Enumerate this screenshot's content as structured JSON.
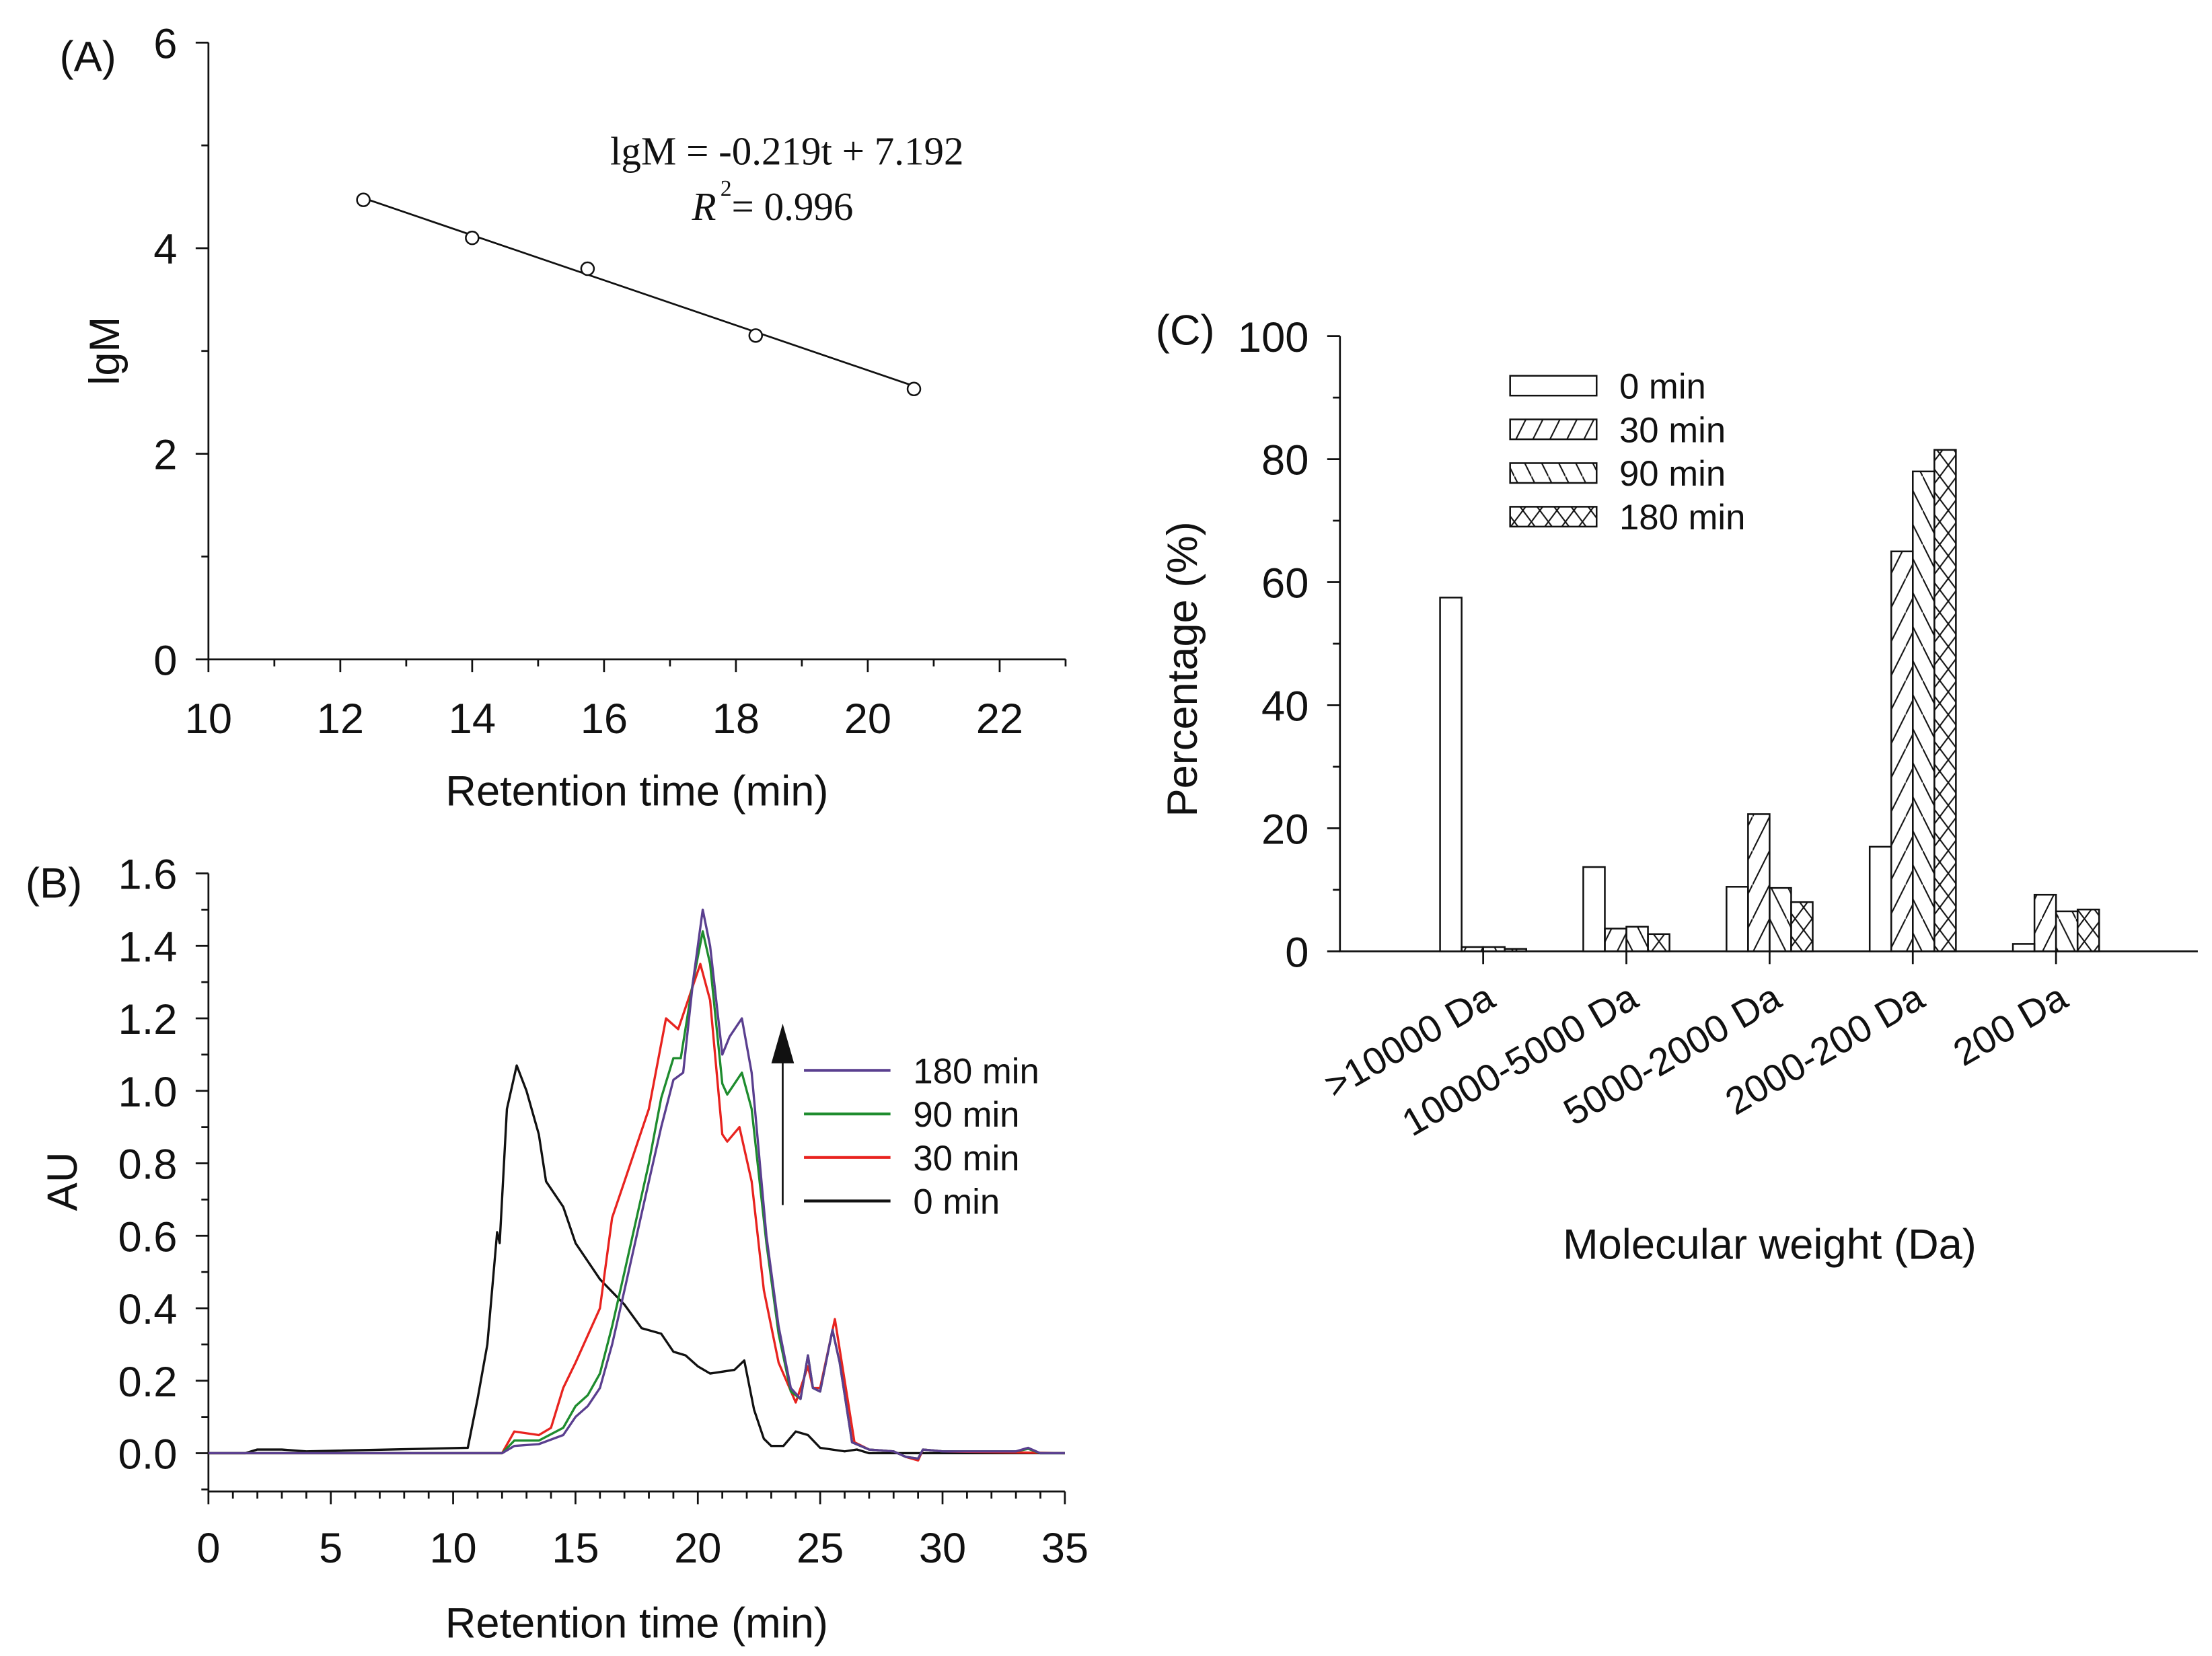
{
  "chart_data": [
    {
      "panel": "(A)",
      "type": "scatter",
      "xlabel": "Retention time (min)",
      "ylabel": "lgM",
      "xlim": [
        10,
        23
      ],
      "ylim": [
        0,
        6
      ],
      "xticks": [
        10,
        12,
        14,
        16,
        18,
        20,
        22
      ],
      "yticks": [
        0,
        2,
        4,
        6
      ],
      "points": [
        {
          "x": 12.35,
          "y": 4.47
        },
        {
          "x": 14.0,
          "y": 4.1
        },
        {
          "x": 15.75,
          "y": 3.8
        },
        {
          "x": 18.3,
          "y": 3.15
        },
        {
          "x": 20.7,
          "y": 2.63
        }
      ],
      "fit": {
        "slope": -0.219,
        "intercept": 7.192,
        "x_range": [
          12.35,
          20.7
        ]
      },
      "annotation_equation": "lgM = -0.219t + 7.192",
      "annotation_r2_label": "R",
      "annotation_r2_sup": "2",
      "annotation_r2_value": " = 0.996",
      "grid": false
    },
    {
      "panel": "(B)",
      "type": "line",
      "xlabel": "Retention time (min)",
      "ylabel": "AU",
      "xlim": [
        0,
        35
      ],
      "ylim": [
        -0.1,
        1.6
      ],
      "xticks": [
        0,
        5,
        10,
        15,
        20,
        25,
        30,
        35
      ],
      "yticks": [
        "0.0",
        "0.2",
        "0.4",
        "0.6",
        "0.8",
        "1.0",
        "1.2",
        "1.4",
        "1.6"
      ],
      "legend_position": "right",
      "arrow_annotation": "increasing time",
      "series": [
        {
          "name": "180 min",
          "color": "#5a3f8f",
          "points": [
            [
              0,
              0
            ],
            [
              12,
              0
            ],
            [
              12.5,
              0.02
            ],
            [
              13.5,
              0.025
            ],
            [
              14.5,
              0.05
            ],
            [
              15,
              0.1
            ],
            [
              15.5,
              0.13
            ],
            [
              16,
              0.18
            ],
            [
              16.5,
              0.3
            ],
            [
              17,
              0.45
            ],
            [
              17.5,
              0.6
            ],
            [
              18,
              0.75
            ],
            [
              18.5,
              0.9
            ],
            [
              19,
              1.03
            ],
            [
              19.4,
              1.05
            ],
            [
              19.8,
              1.3
            ],
            [
              20.2,
              1.5
            ],
            [
              20.5,
              1.4
            ],
            [
              21,
              1.1
            ],
            [
              21.3,
              1.15
            ],
            [
              21.8,
              1.2
            ],
            [
              22.2,
              1.05
            ],
            [
              22.8,
              0.6
            ],
            [
              23.3,
              0.35
            ],
            [
              23.8,
              0.18
            ],
            [
              24.2,
              0.15
            ],
            [
              24.5,
              0.27
            ],
            [
              24.7,
              0.18
            ],
            [
              25,
              0.17
            ],
            [
              25.5,
              0.34
            ],
            [
              25.8,
              0.25
            ],
            [
              26.3,
              0.03
            ],
            [
              27,
              0.01
            ],
            [
              28,
              0.005
            ],
            [
              28.5,
              -0.01
            ],
            [
              29,
              -0.015
            ],
            [
              29.2,
              0.01
            ],
            [
              30,
              0.005
            ],
            [
              33,
              0.005
            ],
            [
              33.5,
              0.015
            ],
            [
              34,
              0
            ],
            [
              35,
              0
            ]
          ]
        },
        {
          "name": "90 min",
          "color": "#1e8c2e",
          "points": [
            [
              0,
              0
            ],
            [
              12,
              0
            ],
            [
              12.5,
              0.035
            ],
            [
              13.5,
              0.035
            ],
            [
              14.5,
              0.07
            ],
            [
              15,
              0.13
            ],
            [
              15.5,
              0.16
            ],
            [
              16,
              0.22
            ],
            [
              16.5,
              0.35
            ],
            [
              17,
              0.5
            ],
            [
              17.5,
              0.65
            ],
            [
              18,
              0.8
            ],
            [
              18.5,
              0.98
            ],
            [
              19,
              1.09
            ],
            [
              19.3,
              1.09
            ],
            [
              19.8,
              1.3
            ],
            [
              20.2,
              1.44
            ],
            [
              20.5,
              1.35
            ],
            [
              21,
              1.02
            ],
            [
              21.2,
              0.99
            ],
            [
              21.8,
              1.05
            ],
            [
              22.2,
              0.95
            ],
            [
              22.8,
              0.58
            ],
            [
              23.3,
              0.33
            ],
            [
              23.8,
              0.17
            ],
            [
              24.2,
              0.15
            ],
            [
              24.5,
              0.27
            ],
            [
              24.7,
              0.18
            ],
            [
              25,
              0.17
            ],
            [
              25.5,
              0.34
            ],
            [
              25.8,
              0.25
            ],
            [
              26.3,
              0.03
            ],
            [
              27,
              0.01
            ],
            [
              28,
              0.005
            ],
            [
              28.5,
              -0.01
            ],
            [
              29,
              -0.015
            ],
            [
              29.2,
              0.01
            ],
            [
              30,
              0.005
            ],
            [
              33,
              0.005
            ],
            [
              33.5,
              0.012
            ],
            [
              34,
              0
            ],
            [
              35,
              0
            ]
          ]
        },
        {
          "name": "30 min",
          "color": "#e8231f",
          "points": [
            [
              0,
              0
            ],
            [
              12,
              0
            ],
            [
              12.5,
              0.06
            ],
            [
              13.5,
              0.05
            ],
            [
              14,
              0.07
            ],
            [
              14.5,
              0.18
            ],
            [
              15,
              0.25
            ],
            [
              16,
              0.4
            ],
            [
              16.5,
              0.65
            ],
            [
              17,
              0.75
            ],
            [
              18,
              0.95
            ],
            [
              18.7,
              1.2
            ],
            [
              19.2,
              1.17
            ],
            [
              20.1,
              1.35
            ],
            [
              20.5,
              1.25
            ],
            [
              21,
              0.88
            ],
            [
              21.2,
              0.86
            ],
            [
              21.7,
              0.9
            ],
            [
              22.2,
              0.75
            ],
            [
              22.7,
              0.45
            ],
            [
              23.3,
              0.25
            ],
            [
              24,
              0.14
            ],
            [
              24.5,
              0.24
            ],
            [
              24.7,
              0.18
            ],
            [
              25,
              0.18
            ],
            [
              25.6,
              0.37
            ],
            [
              26,
              0.2
            ],
            [
              26.4,
              0.03
            ],
            [
              27,
              0.01
            ],
            [
              28,
              0.005
            ],
            [
              28.5,
              -0.01
            ],
            [
              29,
              -0.02
            ],
            [
              29.2,
              0.01
            ],
            [
              30,
              0.005
            ],
            [
              35,
              0
            ]
          ]
        },
        {
          "name": "0 min",
          "color": "#111111",
          "points": [
            [
              0,
              0
            ],
            [
              1.5,
              0
            ],
            [
              2,
              0.01
            ],
            [
              3,
              0.01
            ],
            [
              4,
              0.005
            ],
            [
              10.6,
              0.015
            ],
            [
              11,
              0.15
            ],
            [
              11.4,
              0.3
            ],
            [
              11.8,
              0.61
            ],
            [
              11.9,
              0.58
            ],
            [
              12.2,
              0.95
            ],
            [
              12.6,
              1.07
            ],
            [
              13,
              1.0
            ],
            [
              13.5,
              0.88
            ],
            [
              13.8,
              0.75
            ],
            [
              14.5,
              0.68
            ],
            [
              15,
              0.58
            ],
            [
              16,
              0.48
            ],
            [
              17,
              0.41
            ],
            [
              17.7,
              0.345
            ],
            [
              18.5,
              0.33
            ],
            [
              19,
              0.28
            ],
            [
              19.5,
              0.27
            ],
            [
              20,
              0.24
            ],
            [
              20.5,
              0.22
            ],
            [
              21.5,
              0.23
            ],
            [
              21.9,
              0.256
            ],
            [
              22.3,
              0.12
            ],
            [
              22.7,
              0.04
            ],
            [
              23,
              0.02
            ],
            [
              23.5,
              0.02
            ],
            [
              24,
              0.06
            ],
            [
              24.5,
              0.05
            ],
            [
              25,
              0.015
            ],
            [
              26,
              0.005
            ],
            [
              26.5,
              0.01
            ],
            [
              27,
              0
            ],
            [
              35,
              0
            ]
          ]
        }
      ],
      "grid": false
    },
    {
      "panel": "(C)",
      "type": "bar",
      "xlabel": "Molecular weight (Da)",
      "ylabel": "Percentage (%)",
      "ylim": [
        0,
        100
      ],
      "yticks": [
        0,
        20,
        40,
        60,
        80,
        100
      ],
      "categories": [
        ">10000 Da",
        "10000-5000 Da",
        "5000-2000 Da",
        "2000-200 Da",
        "200 Da"
      ],
      "legend_position": "top-left",
      "series": [
        {
          "name": "0 min",
          "pattern": "none",
          "values": [
            57.5,
            13.7,
            10.5,
            17.0,
            1.2
          ]
        },
        {
          "name": "30 min",
          "pattern": "forward-hatch",
          "values": [
            0.7,
            3.7,
            22.3,
            65.0,
            9.2
          ]
        },
        {
          "name": "90 min",
          "pattern": "back-hatch",
          "values": [
            0.7,
            4.0,
            10.3,
            78.0,
            6.5
          ]
        },
        {
          "name": "180 min",
          "pattern": "cross-hatch",
          "values": [
            0.4,
            2.8,
            8.0,
            81.5,
            6.8
          ]
        }
      ],
      "grid": false
    }
  ]
}
